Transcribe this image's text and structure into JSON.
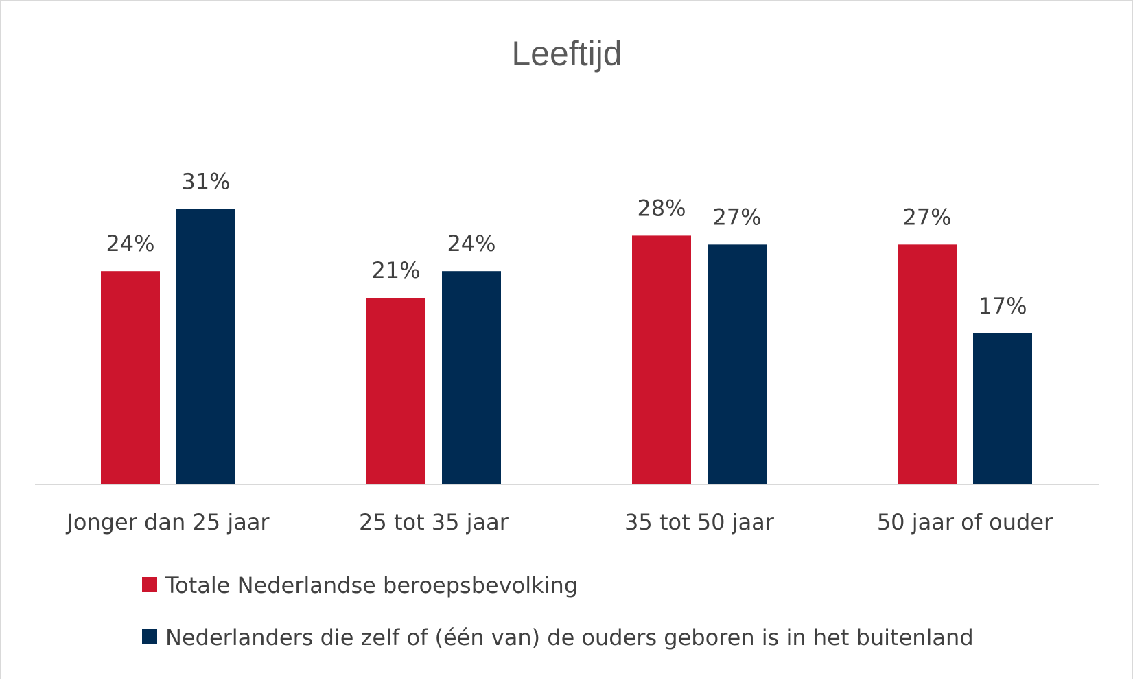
{
  "chart_data": {
    "type": "bar",
    "title": "Leeftijd",
    "xlabel": "",
    "ylabel": "",
    "ylim": [
      0,
      35
    ],
    "grid": false,
    "legend_position": "bottom",
    "categories": [
      "Jonger dan 25 jaar",
      "25 tot 35 jaar",
      "35 tot 50 jaar",
      "50 jaar of ouder"
    ],
    "series": [
      {
        "name": "Totale Nederlandse beroepsbevolking",
        "color": "#cc152d",
        "values": [
          24,
          21,
          28,
          27
        ],
        "labels": [
          "24%",
          "21%",
          "28%",
          "27%"
        ]
      },
      {
        "name": "Nederlanders die zelf of (één van) de ouders geboren is in het buitenland",
        "color": "#002b53",
        "values": [
          31,
          24,
          27,
          17
        ],
        "labels": [
          "31%",
          "24%",
          "27%",
          "17%"
        ]
      }
    ]
  }
}
